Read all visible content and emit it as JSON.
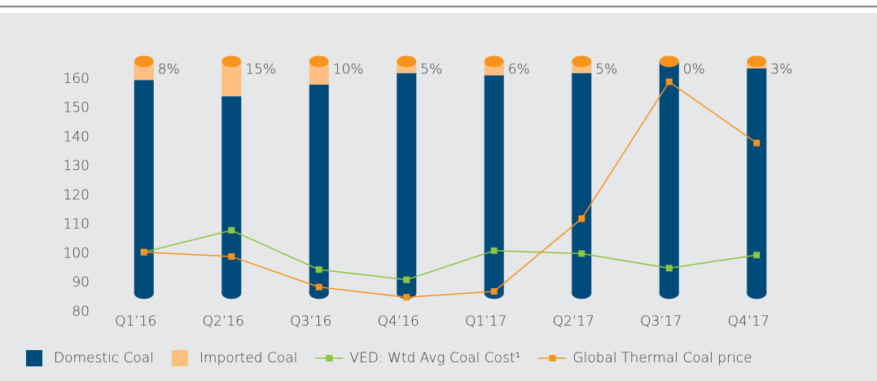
{
  "chart_data": {
    "type": "bar_line",
    "categories": [
      "Q1’16",
      "Q2’16",
      "Q3’16",
      "Q4’16",
      "Q1’17",
      "Q2’17",
      "Q3’17",
      "Q4’17"
    ],
    "ylim": [
      80,
      166
    ],
    "yticks": [
      80,
      90,
      100,
      110,
      120,
      130,
      140,
      150,
      160
    ],
    "y2lim": [
      -8,
      100
    ],
    "series": [
      {
        "name": "Domestic Coal",
        "color": "#004b7a",
        "axis": "y2",
        "kind": "bar",
        "values": [
          92,
          85,
          90,
          95,
          94,
          95,
          100,
          97
        ]
      },
      {
        "name": "Imported Coal",
        "color": "#fdbf80",
        "axis": "y2",
        "kind": "bar",
        "values": [
          8,
          15,
          10,
          5,
          6,
          5,
          0,
          3
        ],
        "value_labels": [
          "8%",
          "15%",
          "10%",
          "5%",
          "6%",
          "5%",
          "0%",
          "3%"
        ]
      },
      {
        "name": "VED: Wtd Avg Coal Cost¹",
        "color": "#8dc63f",
        "kind": "line",
        "values": [
          100.5,
          108,
          94.5,
          91,
          101,
          100,
          95,
          99.5
        ]
      },
      {
        "name": "Global Thermal Coal price",
        "color": "#f7941d",
        "kind": "line",
        "values": [
          100.5,
          99,
          88.5,
          85,
          87,
          112,
          159,
          138
        ]
      }
    ]
  }
}
